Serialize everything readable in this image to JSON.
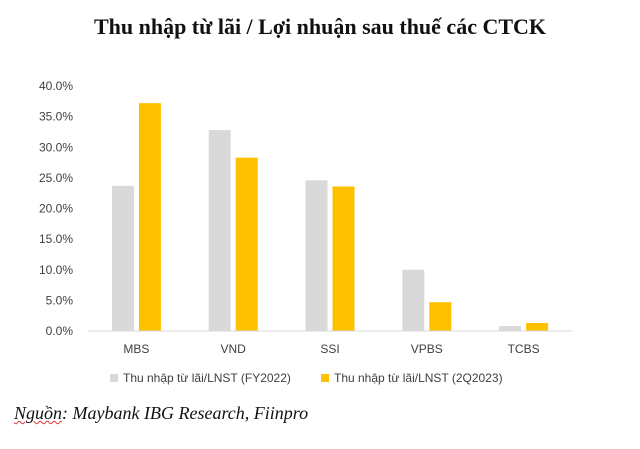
{
  "header": {
    "title": "Thu nhập từ lãi / Lợi nhuận sau thuế các CTCK"
  },
  "source": {
    "prefix": "Nguồn",
    "rest": ": Maybank IBG Research, Fiinpro"
  },
  "colors": {
    "series1": "#d9d9d9",
    "series2": "#ffc000",
    "axis": "#d9d9d9",
    "text": "#404040"
  },
  "chart_data": {
    "type": "bar",
    "title": "Thu nhập từ lãi / Lợi nhuận sau thuế các CTCK",
    "categories": [
      "MBS",
      "VND",
      "SSI",
      "VPBS",
      "TCBS"
    ],
    "series": [
      {
        "name": "Thu nhập từ lãi/LNST (FY2022)",
        "values": [
          23.7,
          32.8,
          24.6,
          10.0,
          0.8
        ]
      },
      {
        "name": "Thu nhập từ lãi/LNST (2Q2023)",
        "values": [
          37.2,
          28.3,
          23.6,
          4.7,
          1.3
        ]
      }
    ],
    "yticks": [
      "0.0%",
      "5.0%",
      "10.0%",
      "15.0%",
      "20.0%",
      "25.0%",
      "30.0%",
      "35.0%",
      "40.0%"
    ],
    "ylim": [
      0,
      40
    ],
    "grid": false,
    "legend_position": "bottom"
  }
}
